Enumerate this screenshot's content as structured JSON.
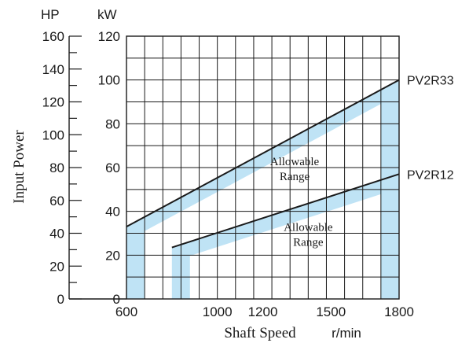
{
  "chart_data": {
    "type": "line",
    "xlabel": "Shaft Speed",
    "x_unit": "r/min",
    "ylabel": "Input Power",
    "hp_axis_label": "HP",
    "kw_axis_label": "kW",
    "xlim": [
      600,
      1800
    ],
    "ylim_kw": [
      0,
      120
    ],
    "ylim_hp": [
      0,
      160
    ],
    "x_ticks": [
      {
        "value": 600,
        "label": "600"
      },
      {
        "value": 1000,
        "label": "1000"
      },
      {
        "value": 1200,
        "label": "1200"
      },
      {
        "value": 1500,
        "label": "1500"
      },
      {
        "value": 1800,
        "label": "1800"
      }
    ],
    "kw_ticks": [
      "0",
      "20",
      "40",
      "60",
      "80",
      "100",
      "120"
    ],
    "hp_ticks": [
      "0",
      "20",
      "40",
      "60",
      "80",
      "100",
      "120",
      "140",
      "160"
    ],
    "grid": true,
    "band_color": "#bfe3f5",
    "line_color": "#1a1a1a",
    "series": [
      {
        "name": "PV2R33",
        "x": [
          600,
          1800
        ],
        "y": [
          33,
          100
        ],
        "range_label": [
          "Allowable",
          "Range"
        ],
        "range_label_at": {
          "x": 1340,
          "y": 61
        }
      },
      {
        "name": "PV2R12",
        "x": [
          800,
          1800
        ],
        "y": [
          23.5,
          57
        ],
        "range_label": [
          "Allowable",
          "Range"
        ],
        "range_label_at": {
          "x": 1400,
          "y": 31
        }
      }
    ]
  }
}
